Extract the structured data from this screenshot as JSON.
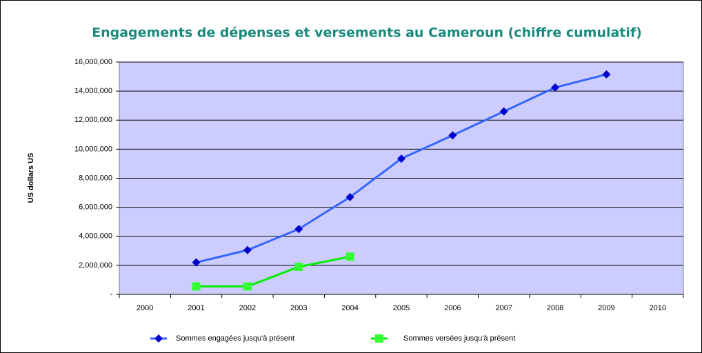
{
  "chart_data": {
    "type": "line",
    "title": "Engagements de dépenses et versements au Cameroun (chiffre cumulatif)",
    "y_label": "US dollars US",
    "categories": [
      "2000",
      "2001",
      "2002",
      "2003",
      "2004",
      "2005",
      "2006",
      "2007",
      "2008",
      "2009",
      "2010"
    ],
    "series": [
      {
        "name": "Sommes engagées jusqu'à présent",
        "color": "#3366ff",
        "marker_color": "#0000cc",
        "marker": "diamond",
        "values": [
          null,
          2200000,
          3050000,
          4500000,
          6700000,
          9350000,
          10950000,
          12600000,
          14250000,
          15150000,
          null
        ]
      },
      {
        "name": "Sommes versées jusqu'à présent",
        "color": "#00ee00",
        "marker_color": "#33ff33",
        "marker": "square",
        "values": [
          null,
          550000,
          550000,
          1900000,
          2600000,
          null,
          null,
          null,
          null,
          null,
          null
        ]
      }
    ],
    "ylim": [
      0,
      16000000
    ],
    "yticks": [
      {
        "value": 0,
        "label": "-"
      },
      {
        "value": 2000000,
        "label": "2,000,000"
      },
      {
        "value": 4000000,
        "label": "4,000,000"
      },
      {
        "value": 6000000,
        "label": "6,000,000"
      },
      {
        "value": 8000000,
        "label": "8,000,000"
      },
      {
        "value": 10000000,
        "label": "10,000,000"
      },
      {
        "value": 12000000,
        "label": "12,000,000"
      },
      {
        "value": 14000000,
        "label": "14,000,000"
      },
      {
        "value": 16000000,
        "label": "16,000,000"
      }
    ],
    "grid": true,
    "plot_background": "#ccccff",
    "legend": "bottom"
  }
}
